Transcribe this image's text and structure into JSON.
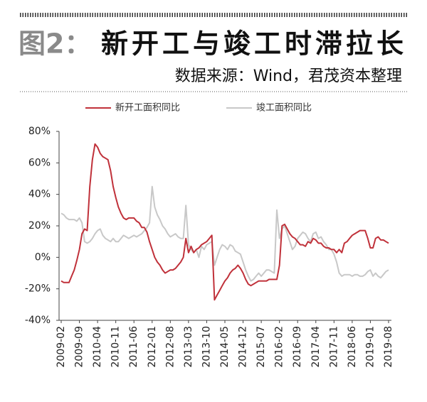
{
  "chart_data": {
    "type": "line",
    "figure_label": "图2：",
    "title": "新开工与竣工时滞拉长",
    "subtitle": "数据来源：Wind，君茂资本整理",
    "x": [
      "2009-02",
      "2009-03",
      "2009-04",
      "2009-05",
      "2009-06",
      "2009-07",
      "2009-08",
      "2009-09",
      "2009-10",
      "2009-11",
      "2009-12",
      "2010-01",
      "2010-02",
      "2010-03",
      "2010-04",
      "2010-05",
      "2010-06",
      "2010-07",
      "2010-08",
      "2010-09",
      "2010-10",
      "2010-11",
      "2010-12",
      "2011-01",
      "2011-02",
      "2011-03",
      "2011-04",
      "2011-05",
      "2011-06",
      "2011-07",
      "2011-08",
      "2011-09",
      "2011-10",
      "2011-11",
      "2011-12",
      "2012-01",
      "2012-02",
      "2012-03",
      "2012-04",
      "2012-05",
      "2012-06",
      "2012-07",
      "2012-08",
      "2012-09",
      "2012-10",
      "2012-11",
      "2012-12",
      "2013-01",
      "2013-02",
      "2013-03",
      "2013-04",
      "2013-05",
      "2013-06",
      "2013-07",
      "2013-08",
      "2013-09",
      "2013-10",
      "2013-11",
      "2013-12",
      "2014-01",
      "2014-02",
      "2014-03",
      "2014-04",
      "2014-05",
      "2014-06",
      "2014-07",
      "2014-08",
      "2014-09",
      "2014-10",
      "2014-11",
      "2014-12",
      "2015-01",
      "2015-02",
      "2015-03",
      "2015-04",
      "2015-05",
      "2015-06",
      "2015-07",
      "2015-08",
      "2015-09",
      "2015-10",
      "2015-11",
      "2015-12",
      "2016-01",
      "2016-02",
      "2016-03",
      "2016-04",
      "2016-05",
      "2016-06",
      "2016-07",
      "2016-08",
      "2016-09",
      "2016-10",
      "2016-11",
      "2016-12",
      "2017-01",
      "2017-02",
      "2017-03",
      "2017-04",
      "2017-05",
      "2017-06",
      "2017-07",
      "2017-08",
      "2017-09",
      "2017-10",
      "2017-11",
      "2017-12",
      "2018-01",
      "2018-02",
      "2018-03",
      "2018-04",
      "2018-05",
      "2018-06",
      "2018-07",
      "2018-08",
      "2018-09",
      "2018-10",
      "2018-11",
      "2018-12",
      "2019-01",
      "2019-02",
      "2019-03",
      "2019-04",
      "2019-05",
      "2019-06",
      "2019-07",
      "2019-08"
    ],
    "series": [
      {
        "name": "新开工面积同比",
        "color": "#c0313a",
        "values": [
          -15,
          -16,
          -16,
          -16,
          -12,
          -8,
          -2,
          5,
          15,
          18,
          17,
          45,
          62,
          72,
          70,
          66,
          64,
          63,
          62,
          55,
          45,
          38,
          32,
          28,
          25,
          24,
          25,
          25,
          25,
          23,
          22,
          19,
          19,
          16,
          10,
          5,
          0,
          -3,
          -5,
          -8,
          -10,
          -9,
          -8,
          -8,
          -7,
          -5,
          -3,
          0,
          12,
          3,
          7,
          3,
          5,
          6,
          8,
          9,
          10,
          12,
          14,
          -27,
          -24,
          -21,
          -18,
          -15,
          -13,
          -10,
          -8,
          -7,
          -5,
          -7,
          -10,
          -14,
          -17,
          -18,
          -17,
          -16,
          -15,
          -15,
          -15,
          -15,
          -14,
          -14,
          -14,
          -14,
          -5,
          20,
          21,
          18,
          15,
          13,
          12,
          10,
          8,
          8,
          7,
          10,
          9,
          12,
          11,
          9,
          9,
          7,
          6,
          6,
          5,
          5,
          3,
          5,
          3,
          9,
          10,
          12,
          14,
          15,
          16,
          17,
          17,
          17,
          12,
          6,
          6,
          12,
          13,
          11,
          11,
          10,
          9
        ]
      },
      {
        "name": "竣工面积同比",
        "color": "#c8c8c8",
        "values": [
          28,
          27,
          25,
          24,
          24,
          24,
          23,
          25,
          22,
          10,
          9,
          10,
          12,
          15,
          17,
          18,
          14,
          12,
          11,
          10,
          12,
          10,
          10,
          12,
          14,
          13,
          12,
          13,
          14,
          13,
          14,
          15,
          17,
          19,
          22,
          45,
          32,
          27,
          24,
          20,
          18,
          15,
          13,
          14,
          15,
          13,
          12,
          12,
          33,
          8,
          5,
          3,
          5,
          0,
          7,
          5,
          8,
          9,
          10,
          -5,
          0,
          5,
          8,
          7,
          5,
          8,
          7,
          4,
          3,
          2,
          -3,
          -8,
          -12,
          -15,
          -14,
          -12,
          -10,
          -12,
          -10,
          -8,
          -8,
          -9,
          -10,
          30,
          12,
          18,
          20,
          15,
          10,
          5,
          7,
          12,
          14,
          16,
          15,
          12,
          10,
          15,
          16,
          12,
          13,
          10,
          8,
          5,
          5,
          2,
          -3,
          -10,
          -12,
          -11,
          -11,
          -11,
          -12,
          -11,
          -11,
          -12,
          -12,
          -11,
          -9,
          -8,
          -12,
          -10,
          -12,
          -13,
          -11,
          -9,
          -8
        ]
      }
    ],
    "ylim": [
      -40,
      80
    ],
    "yticks": [
      {
        "value": -40,
        "label": "-40%"
      },
      {
        "value": -20,
        "label": "-20%"
      },
      {
        "value": 0,
        "label": "0%"
      },
      {
        "value": 20,
        "label": "20%"
      },
      {
        "value": 40,
        "label": "40%"
      },
      {
        "value": 60,
        "label": "60%"
      },
      {
        "value": 80,
        "label": "80%"
      }
    ],
    "xticks": [
      "2009-02",
      "2009-09",
      "2010-04",
      "2010-11",
      "2011-06",
      "2012-01",
      "2012-08",
      "2013-03",
      "2013-10",
      "2014-05",
      "2014-12",
      "2015-07",
      "2016-02",
      "2016-09",
      "2017-04",
      "2017-11",
      "2018-06",
      "2019-01",
      "2019-08"
    ],
    "grid": false,
    "legend": "top"
  }
}
